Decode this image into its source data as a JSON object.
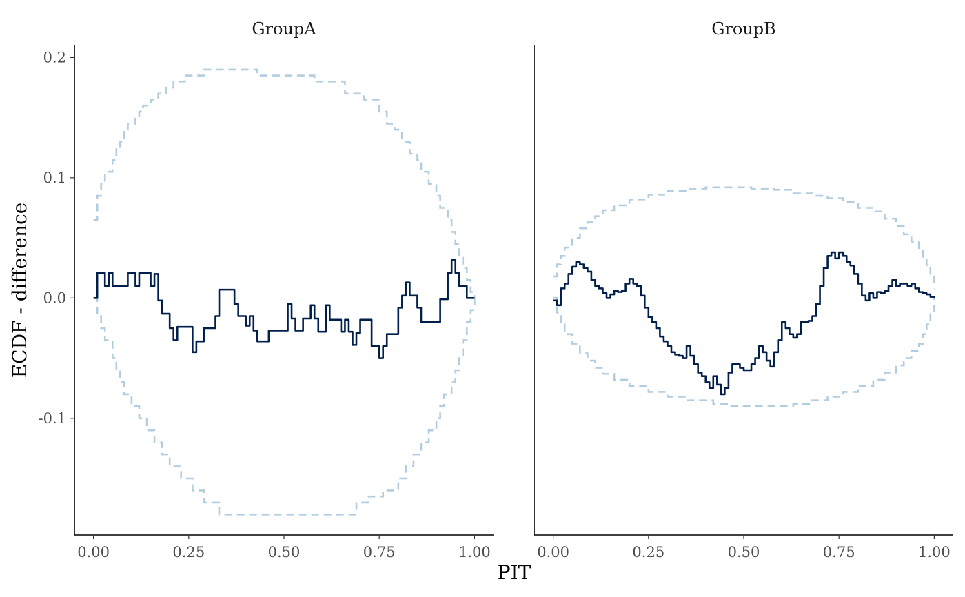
{
  "chart_data": {
    "type": "line",
    "xlabel": "PIT",
    "ylabel": "ECDF - difference",
    "xlim": [
      -0.05,
      1.05
    ],
    "ylim": [
      -0.197,
      0.21
    ],
    "x_ticks": [
      0.0,
      0.25,
      0.5,
      0.75,
      1.0
    ],
    "x_tick_labels": [
      "0.00",
      "0.25",
      "0.50",
      "0.75",
      "1.00"
    ],
    "y_ticks": [
      0.2,
      0.1,
      0.0,
      -0.1
    ],
    "y_tick_labels": [
      "0.2",
      "0.1",
      "0.0",
      "-0.1"
    ],
    "colors": {
      "ecdf": "#011f4b",
      "band": "#b3cde0"
    },
    "grid": false,
    "legend": "none",
    "facets": [
      {
        "title": "GroupA",
        "ecdf": {
          "x": [
            0.0,
            0.01,
            0.03,
            0.04,
            0.05,
            0.06,
            0.09,
            0.11,
            0.12,
            0.15,
            0.16,
            0.17,
            0.18,
            0.2,
            0.21,
            0.22,
            0.26,
            0.27,
            0.29,
            0.32,
            0.33,
            0.34,
            0.37,
            0.38,
            0.4,
            0.41,
            0.42,
            0.43,
            0.46,
            0.51,
            0.52,
            0.53,
            0.55,
            0.57,
            0.58,
            0.59,
            0.61,
            0.62,
            0.65,
            0.66,
            0.67,
            0.68,
            0.69,
            0.7,
            0.73,
            0.75,
            0.76,
            0.77,
            0.8,
            0.81,
            0.82,
            0.83,
            0.85,
            0.86,
            0.87,
            0.9,
            0.91,
            0.93,
            0.94,
            0.95,
            0.96,
            0.97,
            0.98,
            0.99,
            1.0
          ],
          "y": [
            0.0,
            0.021,
            0.01,
            0.021,
            0.01,
            0.01,
            0.021,
            0.01,
            0.021,
            0.01,
            0.02,
            -0.002,
            -0.013,
            -0.025,
            -0.035,
            -0.024,
            -0.045,
            -0.036,
            -0.025,
            -0.015,
            0.007,
            0.007,
            -0.005,
            -0.015,
            -0.023,
            -0.015,
            -0.027,
            -0.036,
            -0.027,
            -0.005,
            -0.017,
            -0.027,
            -0.017,
            -0.006,
            -0.017,
            -0.028,
            -0.006,
            -0.018,
            -0.028,
            -0.018,
            -0.028,
            -0.039,
            -0.029,
            -0.018,
            -0.04,
            -0.05,
            -0.04,
            -0.03,
            -0.008,
            0.002,
            0.013,
            0.002,
            -0.008,
            -0.02,
            -0.02,
            -0.02,
            -0.001,
            0.021,
            0.032,
            0.021,
            0.01,
            0.01,
            0.0,
            0.0,
            0.0
          ]
        },
        "band_upper": {
          "x": [
            0.0,
            0.01,
            0.02,
            0.03,
            0.05,
            0.06,
            0.07,
            0.08,
            0.09,
            0.11,
            0.12,
            0.13,
            0.15,
            0.17,
            0.19,
            0.21,
            0.24,
            0.29,
            0.34,
            0.43,
            0.58,
            0.66,
            0.71,
            0.75,
            0.77,
            0.79,
            0.81,
            0.83,
            0.85,
            0.86,
            0.88,
            0.9,
            0.91,
            0.93,
            0.94,
            0.95,
            0.96,
            0.97,
            0.98,
            0.99,
            1.0
          ],
          "y": [
            0.065,
            0.085,
            0.095,
            0.105,
            0.115,
            0.125,
            0.13,
            0.14,
            0.145,
            0.15,
            0.155,
            0.16,
            0.165,
            0.17,
            0.175,
            0.18,
            0.185,
            0.19,
            0.19,
            0.185,
            0.18,
            0.17,
            0.165,
            0.155,
            0.145,
            0.14,
            0.13,
            0.12,
            0.115,
            0.105,
            0.095,
            0.085,
            0.075,
            0.065,
            0.055,
            0.045,
            0.035,
            0.025,
            0.015,
            0.005,
            0.0
          ]
        },
        "band_lower": {
          "x": [
            0.0,
            0.01,
            0.02,
            0.03,
            0.05,
            0.06,
            0.07,
            0.08,
            0.1,
            0.12,
            0.14,
            0.16,
            0.18,
            0.2,
            0.23,
            0.26,
            0.29,
            0.33,
            0.42,
            0.5,
            0.61,
            0.69,
            0.72,
            0.76,
            0.8,
            0.82,
            0.84,
            0.86,
            0.88,
            0.9,
            0.91,
            0.92,
            0.94,
            0.95,
            0.96,
            0.97,
            0.98,
            0.99,
            1.0
          ],
          "y": [
            0.0,
            -0.015,
            -0.025,
            -0.035,
            -0.05,
            -0.06,
            -0.07,
            -0.08,
            -0.09,
            -0.1,
            -0.11,
            -0.12,
            -0.13,
            -0.14,
            -0.15,
            -0.16,
            -0.17,
            -0.18,
            -0.18,
            -0.18,
            -0.18,
            -0.17,
            -0.165,
            -0.16,
            -0.15,
            -0.14,
            -0.13,
            -0.12,
            -0.11,
            -0.1,
            -0.09,
            -0.08,
            -0.07,
            -0.06,
            -0.05,
            -0.035,
            -0.02,
            -0.01,
            0.0
          ]
        }
      },
      {
        "title": "GroupB",
        "ecdf": {
          "x": [
            0.0,
            0.01,
            0.02,
            0.03,
            0.04,
            0.05,
            0.06,
            0.07,
            0.08,
            0.09,
            0.1,
            0.11,
            0.12,
            0.13,
            0.14,
            0.15,
            0.16,
            0.17,
            0.18,
            0.19,
            0.2,
            0.21,
            0.22,
            0.23,
            0.24,
            0.25,
            0.26,
            0.27,
            0.28,
            0.29,
            0.3,
            0.31,
            0.32,
            0.33,
            0.34,
            0.35,
            0.36,
            0.37,
            0.38,
            0.39,
            0.4,
            0.41,
            0.42,
            0.43,
            0.44,
            0.45,
            0.46,
            0.47,
            0.48,
            0.49,
            0.5,
            0.51,
            0.52,
            0.53,
            0.54,
            0.55,
            0.56,
            0.57,
            0.58,
            0.59,
            0.6,
            0.61,
            0.62,
            0.63,
            0.64,
            0.65,
            0.66,
            0.67,
            0.68,
            0.69,
            0.7,
            0.71,
            0.72,
            0.73,
            0.74,
            0.75,
            0.76,
            0.77,
            0.78,
            0.79,
            0.8,
            0.81,
            0.82,
            0.83,
            0.84,
            0.85,
            0.86,
            0.87,
            0.88,
            0.89,
            0.9,
            0.91,
            0.92,
            0.93,
            0.94,
            0.95,
            0.96,
            0.97,
            0.98,
            0.99,
            1.0
          ],
          "y": [
            -0.002,
            -0.006,
            0.008,
            0.012,
            0.02,
            0.026,
            0.03,
            0.028,
            0.025,
            0.022,
            0.015,
            0.01,
            0.008,
            0.004,
            0.0,
            0.003,
            0.006,
            0.005,
            0.006,
            0.012,
            0.016,
            0.012,
            0.01,
            0.002,
            -0.008,
            -0.016,
            -0.02,
            -0.025,
            -0.032,
            -0.036,
            -0.04,
            -0.045,
            -0.047,
            -0.048,
            -0.05,
            -0.04,
            -0.048,
            -0.055,
            -0.062,
            -0.065,
            -0.07,
            -0.075,
            -0.065,
            -0.072,
            -0.08,
            -0.075,
            -0.062,
            -0.055,
            -0.055,
            -0.058,
            -0.06,
            -0.06,
            -0.055,
            -0.05,
            -0.04,
            -0.045,
            -0.052,
            -0.057,
            -0.045,
            -0.035,
            -0.02,
            -0.025,
            -0.03,
            -0.033,
            -0.03,
            -0.02,
            -0.02,
            -0.019,
            -0.015,
            -0.005,
            0.01,
            0.025,
            0.035,
            0.038,
            0.033,
            0.038,
            0.035,
            0.03,
            0.027,
            0.02,
            0.012,
            0.002,
            -0.002,
            0.004,
            0.0,
            0.005,
            0.004,
            0.006,
            0.01,
            0.015,
            0.01,
            0.012,
            0.012,
            0.01,
            0.012,
            0.008,
            0.005,
            0.004,
            0.003,
            0.001,
            0.0
          ]
        },
        "band_upper": {
          "x": [
            0.0,
            0.01,
            0.02,
            0.03,
            0.05,
            0.07,
            0.09,
            0.11,
            0.13,
            0.16,
            0.2,
            0.25,
            0.3,
            0.35,
            0.4,
            0.46,
            0.52,
            0.58,
            0.63,
            0.68,
            0.72,
            0.76,
            0.8,
            0.84,
            0.87,
            0.9,
            0.92,
            0.94,
            0.96,
            0.97,
            0.98,
            0.99,
            1.0
          ],
          "y": [
            0.018,
            0.028,
            0.035,
            0.042,
            0.05,
            0.058,
            0.063,
            0.068,
            0.073,
            0.077,
            0.082,
            0.086,
            0.089,
            0.091,
            0.092,
            0.092,
            0.091,
            0.09,
            0.087,
            0.085,
            0.083,
            0.08,
            0.075,
            0.072,
            0.066,
            0.06,
            0.053,
            0.047,
            0.04,
            0.033,
            0.026,
            0.018,
            0.008
          ]
        },
        "band_lower": {
          "x": [
            0.0,
            0.01,
            0.02,
            0.03,
            0.05,
            0.07,
            0.09,
            0.11,
            0.13,
            0.16,
            0.2,
            0.25,
            0.3,
            0.35,
            0.42,
            0.46,
            0.52,
            0.58,
            0.63,
            0.68,
            0.72,
            0.76,
            0.8,
            0.84,
            0.87,
            0.9,
            0.92,
            0.94,
            0.96,
            0.97,
            0.98,
            0.99,
            1.0
          ],
          "y": [
            0.0,
            -0.012,
            -0.022,
            -0.03,
            -0.038,
            -0.046,
            -0.052,
            -0.058,
            -0.063,
            -0.068,
            -0.073,
            -0.078,
            -0.082,
            -0.085,
            -0.088,
            -0.09,
            -0.09,
            -0.09,
            -0.088,
            -0.085,
            -0.082,
            -0.078,
            -0.073,
            -0.068,
            -0.062,
            -0.056,
            -0.05,
            -0.044,
            -0.038,
            -0.03,
            -0.022,
            -0.012,
            0.0
          ]
        }
      }
    ]
  }
}
